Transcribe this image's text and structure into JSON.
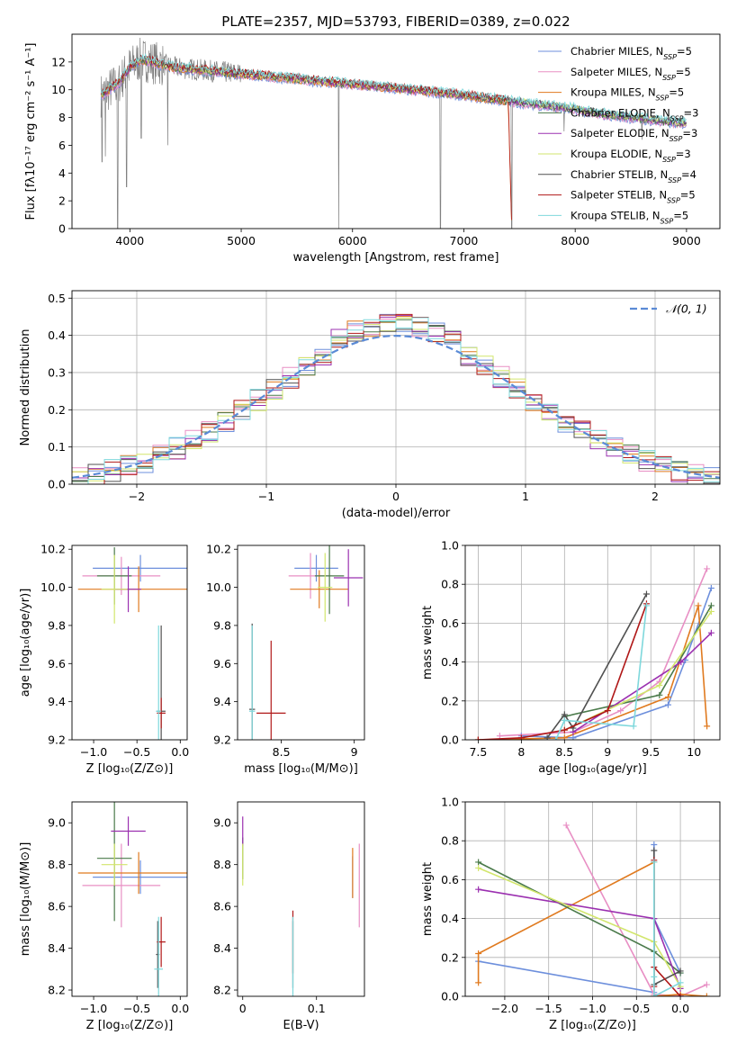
{
  "figure": {
    "title": "PLATE=2357, MJD=53793, FIBERID=0389, z=0.022"
  },
  "model_styles": [
    {
      "name": "Chabrier MILES, N",
      "sub": "SSP",
      "suffix": "=5",
      "color": "#6d8fdc"
    },
    {
      "name": "Salpeter MILES, N",
      "sub": "SSP",
      "suffix": "=5",
      "color": "#e88fc4"
    },
    {
      "name": "Kroupa MILES, N",
      "sub": "SSP",
      "suffix": "=5",
      "color": "#e07a1f"
    },
    {
      "name": "Chabrier ELODIE, N",
      "sub": "SSP",
      "suffix": "=3",
      "color": "#4a7a4a"
    },
    {
      "name": "Salpeter ELODIE, N",
      "sub": "SSP",
      "suffix": "=3",
      "color": "#9b30b0"
    },
    {
      "name": "Kroupa ELODIE, N",
      "sub": "SSP",
      "suffix": "=3",
      "color": "#d2e66c"
    },
    {
      "name": "Chabrier STELIB, N",
      "sub": "SSP",
      "suffix": "=4",
      "color": "#505050"
    },
    {
      "name": "Salpeter STELIB, N",
      "sub": "SSP",
      "suffix": "=5",
      "color": "#b01818"
    },
    {
      "name": "Kroupa STELIB, N",
      "sub": "SSP",
      "suffix": "=5",
      "color": "#7fd8dc"
    }
  ],
  "chart_data": [
    {
      "id": "spectrum",
      "type": "line",
      "xlabel": "wavelength [Angstrom, rest frame]",
      "ylabel": "Flux [fλ10⁻¹⁷ erg cm⁻² s⁻¹ A⁻¹]",
      "xlim": [
        3480,
        9300
      ],
      "ylim": [
        0,
        14
      ],
      "xticks": [
        4000,
        5000,
        6000,
        7000,
        8000,
        9000
      ],
      "yticks": [
        0,
        2,
        4,
        6,
        8,
        10,
        12
      ],
      "grid": false,
      "legend": "top-right",
      "data_color": "#808080",
      "continuum": {
        "x": [
          3740,
          3900,
          4000,
          4100,
          4400,
          4800,
          5200,
          5600,
          6000,
          6400,
          6800,
          7000,
          7200,
          7400,
          7600,
          7800,
          8000,
          8200,
          8400,
          8600,
          8800,
          9000
        ],
        "y": [
          9.6,
          10.5,
          11.6,
          12.2,
          11.6,
          11.3,
          11.0,
          10.7,
          10.4,
          10.1,
          9.8,
          9.6,
          9.4,
          9.2,
          9.0,
          8.8,
          8.6,
          8.3,
          8.1,
          7.9,
          7.7,
          7.6
        ]
      },
      "dips": [
        {
          "x": 3750,
          "y": 4.8
        },
        {
          "x": 3780,
          "y": 5.2
        },
        {
          "x": 3890,
          "y": 0.0
        },
        {
          "x": 3970,
          "y": 3.0
        },
        {
          "x": 4103,
          "y": 6.5
        },
        {
          "x": 4340,
          "y": 6.0
        },
        {
          "x": 5876,
          "y": 0.0
        },
        {
          "x": 6790,
          "y": 0.0
        },
        {
          "x": 7430,
          "y": 0.0
        },
        {
          "x": 7900,
          "y": 7.0
        },
        {
          "x": 8600,
          "y": 6.4
        }
      ]
    },
    {
      "id": "residuals",
      "type": "histogram",
      "xlabel": "(data-model)/error",
      "ylabel": "Normed distribution",
      "xlim": [
        -2.5,
        2.5
      ],
      "ylim": [
        0,
        0.52
      ],
      "xticks": [
        -2,
        -1,
        0,
        1,
        2
      ],
      "yticks": [
        0,
        0.1,
        0.2,
        0.3,
        0.4,
        0.5
      ],
      "grid": true,
      "legend": "top-right",
      "gaussian_label": "𝒩(0, 1)",
      "gaussian_color": "#5a8ad6",
      "bin_edges_start": -2.5,
      "bin_width": 0.1,
      "base_heights": [
        0.018,
        0.022,
        0.026,
        0.031,
        0.037,
        0.043,
        0.05,
        0.058,
        0.067,
        0.077,
        0.088,
        0.1,
        0.113,
        0.127,
        0.142,
        0.158,
        0.174,
        0.191,
        0.208,
        0.225,
        0.243,
        0.261,
        0.279,
        0.296,
        0.312,
        0.327,
        0.341,
        0.354,
        0.366,
        0.376,
        0.385,
        0.393,
        0.399,
        0.404,
        0.408,
        0.41,
        0.41,
        0.408,
        0.405,
        0.4,
        0.394,
        0.386,
        0.377,
        0.366,
        0.354,
        0.341,
        0.327,
        0.312,
        0.296,
        0.28,
        0.263,
        0.246,
        0.229,
        0.212,
        0.195,
        0.178,
        0.162,
        0.146,
        0.131,
        0.117,
        0.104,
        0.092,
        0.081,
        0.071,
        0.062,
        0.054,
        0.047,
        0.04,
        0.034,
        0.029,
        0.025,
        0.021,
        0.018,
        0.015,
        0.013,
        0.011,
        0.01,
        0.009,
        0.008,
        0.007
      ]
    },
    {
      "id": "age-vs-z",
      "type": "scatter",
      "xlabel": "Z [log₁₀(Z/Z⊙)]",
      "ylabel": "age  [log₁₀(age/yr)]",
      "xlim": [
        -1.25,
        0.08
      ],
      "ylim": [
        9.2,
        10.22
      ],
      "xticks": [
        -1.0,
        -0.5,
        0.0
      ],
      "yticks": [
        9.2,
        9.4,
        9.6,
        9.8,
        10.0,
        10.2
      ],
      "xticklabels": [
        "−1.0",
        "−0.5",
        "0.0"
      ],
      "points": [
        {
          "m": 0,
          "x": -0.46,
          "y": 10.1,
          "xerr": 0.55,
          "yerr": 0.07
        },
        {
          "m": 1,
          "x": -0.68,
          "y": 10.06,
          "xerr": 0.45,
          "yerr": 0.1
        },
        {
          "m": 2,
          "x": -0.48,
          "y": 9.99,
          "xerr": 0.7,
          "yerr": 0.12
        },
        {
          "m": 3,
          "x": -0.76,
          "y": 10.06,
          "xerr": 0.2,
          "yerr": 0.15
        },
        {
          "m": 4,
          "x": -0.6,
          "y": 9.99,
          "xerr": 0.15,
          "yerr": 0.12
        },
        {
          "m": 5,
          "x": -0.76,
          "y": 9.99,
          "xerr": 0.15,
          "yerr": 0.18
        },
        {
          "m": 6,
          "x": -0.22,
          "y": 9.35,
          "xerr": 0.05,
          "yerr": 0.45
        },
        {
          "m": 7,
          "x": -0.22,
          "y": 9.34,
          "xerr": 0.05,
          "yerr": 0.08
        },
        {
          "m": 8,
          "x": -0.25,
          "y": 9.35,
          "xerr": 0.03,
          "yerr": 0.45
        }
      ]
    },
    {
      "id": "age-vs-mass",
      "type": "scatter",
      "xlabel": "mass [log₁₀(M/M⊙)]",
      "ylabel": "",
      "xlim": [
        8.2,
        9.07
      ],
      "ylim": [
        9.2,
        10.22
      ],
      "xticks": [
        8.5,
        9.0
      ],
      "yticks": [
        9.2,
        9.4,
        9.6,
        9.8,
        10.0,
        10.2
      ],
      "points": [
        {
          "m": 0,
          "x": 8.74,
          "y": 10.1,
          "xerr": 0.15,
          "yerr": 0.07
        },
        {
          "m": 1,
          "x": 8.7,
          "y": 10.06,
          "xerr": 0.15,
          "yerr": 0.12
        },
        {
          "m": 2,
          "x": 8.76,
          "y": 9.99,
          "xerr": 0.2,
          "yerr": 0.1
        },
        {
          "m": 3,
          "x": 8.83,
          "y": 10.06,
          "xerr": 0.1,
          "yerr": 0.2
        },
        {
          "m": 4,
          "x": 8.96,
          "y": 10.05,
          "xerr": 0.1,
          "yerr": 0.15
        },
        {
          "m": 5,
          "x": 8.8,
          "y": 10.0,
          "xerr": 0.05,
          "yerr": 0.18
        },
        {
          "m": 6,
          "x": 8.3,
          "y": 9.36,
          "xerr": 0.02,
          "yerr": 0.45
        },
        {
          "m": 7,
          "x": 8.43,
          "y": 9.34,
          "xerr": 0.1,
          "yerr": 0.38
        },
        {
          "m": 8,
          "x": 8.3,
          "y": 9.35,
          "xerr": 0.02,
          "yerr": 0.45
        }
      ]
    },
    {
      "id": "weight-vs-age",
      "type": "line",
      "xlabel": "age  [log₁₀(age/yr)]",
      "ylabel": "mass weight",
      "xlim": [
        7.35,
        10.3
      ],
      "ylim": [
        0,
        1.0
      ],
      "xticks": [
        7.5,
        8.0,
        8.5,
        9.0,
        9.5,
        10.0
      ],
      "yticks": [
        0.0,
        0.2,
        0.4,
        0.6,
        0.8,
        1.0
      ],
      "grid": true,
      "series": [
        {
          "m": 0,
          "x": [
            8.0,
            8.6,
            9.7,
            9.9,
            10.2
          ],
          "y": [
            0.02,
            0.01,
            0.18,
            0.41,
            0.78
          ]
        },
        {
          "m": 1,
          "x": [
            7.75,
            8.6,
            9.15,
            9.6,
            10.15
          ],
          "y": [
            0.02,
            0.04,
            0.15,
            0.3,
            0.88
          ]
        },
        {
          "m": 2,
          "x": [
            7.5,
            8.5,
            9.7,
            10.05,
            10.15
          ],
          "y": [
            0.0,
            0.01,
            0.22,
            0.69,
            0.07
          ]
        },
        {
          "m": 3,
          "x": [
            8.5,
            9.6,
            10.2
          ],
          "y": [
            0.12,
            0.23,
            0.69
          ]
        },
        {
          "m": 4,
          "x": [
            8.6,
            9.85,
            10.2
          ],
          "y": [
            0.04,
            0.4,
            0.55
          ]
        },
        {
          "m": 5,
          "x": [
            8.5,
            9.6,
            10.2
          ],
          "y": [
            0.05,
            0.28,
            0.66
          ]
        },
        {
          "m": 6,
          "x": [
            8.3,
            8.5,
            8.6,
            9.45
          ],
          "y": [
            0.01,
            0.13,
            0.06,
            0.75
          ]
        },
        {
          "m": 7,
          "x": [
            7.5,
            8.0,
            8.5,
            9.0,
            9.45
          ],
          "y": [
            0.0,
            0.01,
            0.05,
            0.15,
            0.7
          ]
        },
        {
          "m": 8,
          "x": [
            8.4,
            8.5,
            9.3,
            9.45
          ],
          "y": [
            0.0,
            0.1,
            0.07,
            0.69
          ]
        }
      ]
    },
    {
      "id": "mass-vs-z",
      "type": "scatter",
      "xlabel": "Z [log₁₀(Z/Z⊙)]",
      "ylabel": "mass [log₁₀(M/M⊙)]",
      "xlim": [
        -1.25,
        0.08
      ],
      "ylim": [
        8.17,
        9.1
      ],
      "xticks": [
        -1.0,
        -0.5,
        0.0
      ],
      "yticks": [
        8.2,
        8.4,
        8.6,
        8.8,
        9.0
      ],
      "xticklabels": [
        "−1.0",
        "−0.5",
        "0.0"
      ],
      "points": [
        {
          "m": 0,
          "x": -0.46,
          "y": 8.74,
          "xerr": 0.55,
          "yerr": 0.08
        },
        {
          "m": 1,
          "x": -0.68,
          "y": 8.7,
          "xerr": 0.45,
          "yerr": 0.2
        },
        {
          "m": 2,
          "x": -0.48,
          "y": 8.76,
          "xerr": 0.7,
          "yerr": 0.1
        },
        {
          "m": 3,
          "x": -0.76,
          "y": 8.83,
          "xerr": 0.2,
          "yerr": 0.3
        },
        {
          "m": 4,
          "x": -0.6,
          "y": 8.96,
          "xerr": 0.2,
          "yerr": 0.07
        },
        {
          "m": 5,
          "x": -0.76,
          "y": 8.8,
          "xerr": 0.15,
          "yerr": 0.1
        },
        {
          "m": 6,
          "x": -0.26,
          "y": 8.37,
          "xerr": 0.02,
          "yerr": 0.16
        },
        {
          "m": 7,
          "x": -0.22,
          "y": 8.43,
          "xerr": 0.05,
          "yerr": 0.12
        },
        {
          "m": 8,
          "x": -0.25,
          "y": 8.3,
          "xerr": 0.05,
          "yerr": 0.25
        }
      ]
    },
    {
      "id": "mass-vs-ebv",
      "type": "scatter",
      "xlabel": "E(B-V)",
      "ylabel": "",
      "xlim": [
        -0.007,
        0.165
      ],
      "ylim": [
        8.17,
        9.1
      ],
      "xticks": [
        0.0,
        0.1
      ],
      "yticks": [
        8.2,
        8.4,
        8.6,
        8.8,
        9.0
      ],
      "points": [
        {
          "m": 0,
          "x": 0.149,
          "y": 8.74,
          "xerr": 0.0,
          "yerr": 0.1
        },
        {
          "m": 1,
          "x": 0.158,
          "y": 8.7,
          "xerr": 0.0,
          "yerr": 0.2
        },
        {
          "m": 2,
          "x": 0.149,
          "y": 8.76,
          "xerr": 0.0,
          "yerr": 0.12
        },
        {
          "m": 3,
          "x": 0.0,
          "y": 8.83,
          "xerr": 0.0,
          "yerr": 0.1
        },
        {
          "m": 4,
          "x": 0.0,
          "y": 8.96,
          "xerr": 0.0,
          "yerr": 0.07
        },
        {
          "m": 5,
          "x": 0.0,
          "y": 8.8,
          "xerr": 0.0,
          "yerr": 0.1
        },
        {
          "m": 6,
          "x": 0.068,
          "y": 8.37,
          "xerr": 0.0,
          "yerr": 0.16
        },
        {
          "m": 7,
          "x": 0.068,
          "y": 8.43,
          "xerr": 0.0,
          "yerr": 0.15
        },
        {
          "m": 8,
          "x": 0.068,
          "y": 8.3,
          "xerr": 0.0,
          "yerr": 0.25
        }
      ]
    },
    {
      "id": "weight-vs-z",
      "type": "line",
      "xlabel": "Z [log₁₀(Z/Z⊙)]",
      "ylabel": "mass weight",
      "xlim": [
        -2.45,
        0.45
      ],
      "ylim": [
        0,
        1.0
      ],
      "xticks": [
        -2.0,
        -1.5,
        -1.0,
        -0.5,
        0.0
      ],
      "yticks": [
        0.0,
        0.2,
        0.4,
        0.6,
        0.8,
        1.0
      ],
      "xticklabels": [
        "−2.0",
        "−1.5",
        "−1.0",
        "−0.5",
        "0.0"
      ],
      "grid": true,
      "series": [
        {
          "m": 0,
          "x": [
            -2.3,
            -0.3,
            -0.3,
            -0.3,
            0.0
          ],
          "y": [
            0.18,
            0.02,
            0.78,
            0.4,
            0.12
          ]
        },
        {
          "m": 1,
          "x": [
            -1.3,
            -0.3,
            0.0,
            0.3
          ],
          "y": [
            0.88,
            0.01,
            0.0,
            0.06
          ]
        },
        {
          "m": 2,
          "x": [
            -2.3,
            -2.3,
            -0.3,
            -0.3,
            0.0,
            0.3
          ],
          "y": [
            0.07,
            0.22,
            0.69,
            0.0,
            0.01,
            0.0
          ]
        },
        {
          "m": 3,
          "x": [
            -2.3,
            -0.3,
            0.0
          ],
          "y": [
            0.69,
            0.23,
            0.12
          ]
        },
        {
          "m": 4,
          "x": [
            -2.3,
            -0.3,
            0.0
          ],
          "y": [
            0.55,
            0.4,
            0.04
          ]
        },
        {
          "m": 5,
          "x": [
            -2.3,
            -0.3,
            0.0
          ],
          "y": [
            0.66,
            0.28,
            0.05
          ]
        },
        {
          "m": 6,
          "x": [
            -0.3,
            -0.3,
            0.0
          ],
          "y": [
            0.75,
            0.06,
            0.13
          ]
        },
        {
          "m": 7,
          "x": [
            -0.3,
            -0.3,
            -0.3,
            0.0
          ],
          "y": [
            0.7,
            0.05,
            0.15,
            0.0
          ]
        },
        {
          "m": 8,
          "x": [
            -0.3,
            -0.3,
            -0.3,
            0.0
          ],
          "y": [
            0.69,
            0.1,
            0.0,
            0.07
          ]
        }
      ]
    }
  ]
}
